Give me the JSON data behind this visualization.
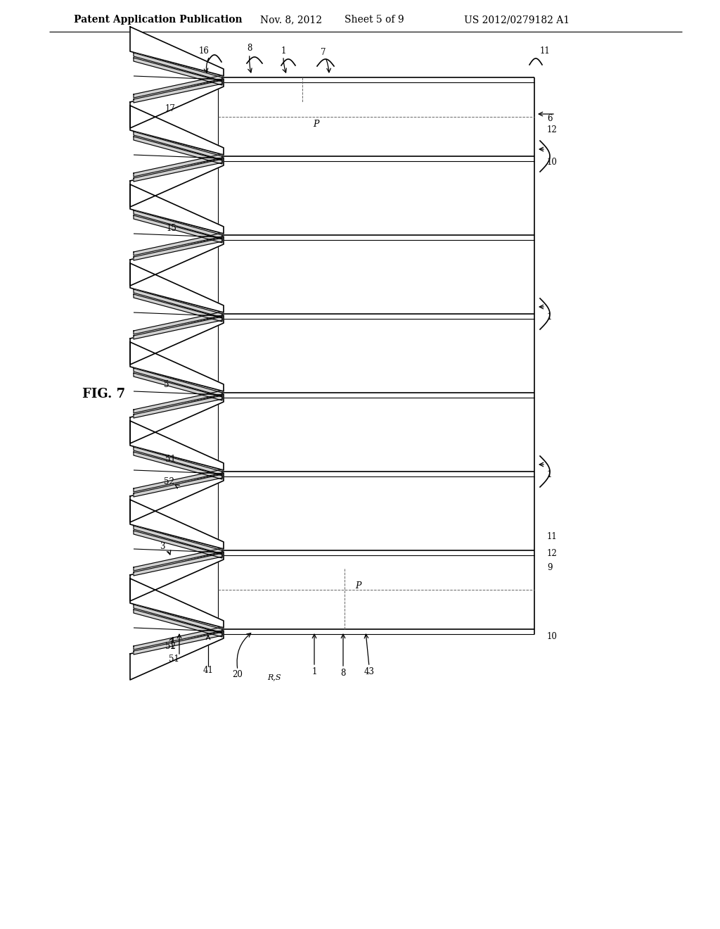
{
  "bg_color": "#ffffff",
  "header_text": "Patent Application Publication",
  "header_date": "Nov. 8, 2012",
  "header_sheet": "Sheet 5 of 9",
  "header_patent": "US 2012/0279182 A1",
  "fig_label": "FIG. 7",
  "lc": "#000000",
  "lw": 1.2,
  "tlw": 0.8
}
